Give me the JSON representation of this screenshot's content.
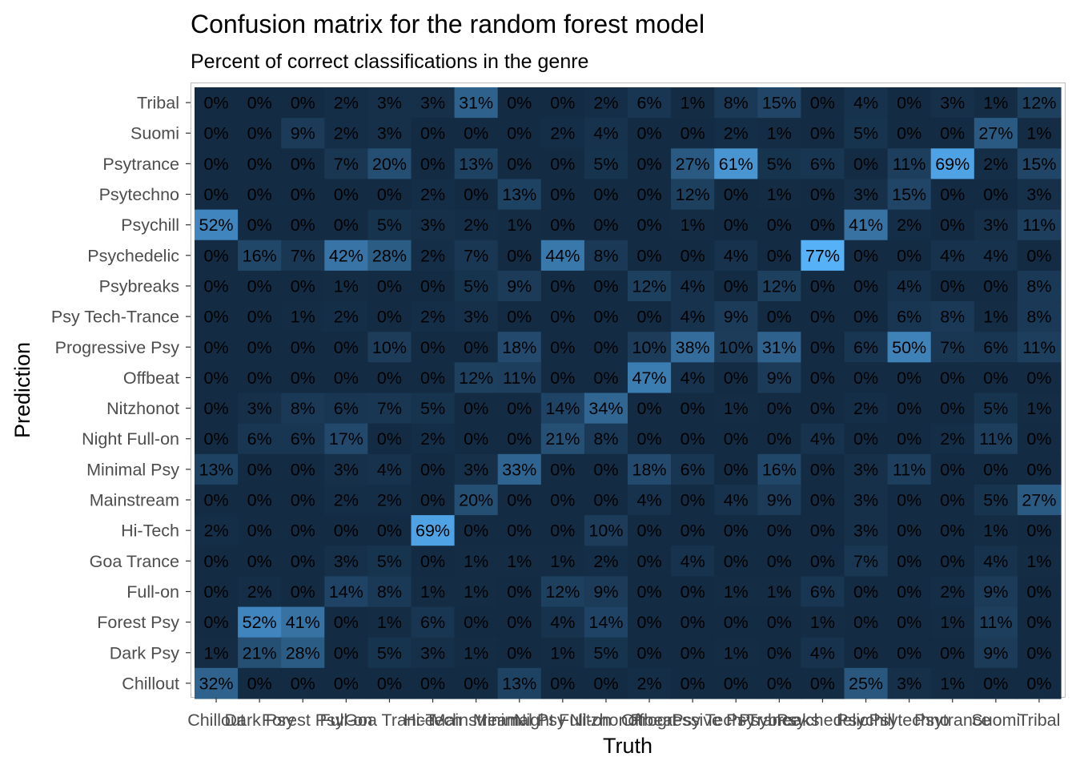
{
  "chart_data": {
    "type": "heatmap",
    "title": "Confusion matrix for the random forest model",
    "subtitle": "Percent of correct classifications in the genre",
    "xlabel": "Truth",
    "ylabel": "Prediction",
    "x_categories": [
      "Chillout",
      "Dark Psy",
      "Forest Psy",
      "Full-on",
      "Goa Trance",
      "Hi-Tech",
      "Mainstream",
      "Minimal Psy",
      "Night Full-on",
      "Nitzhonot",
      "Offbeat",
      "Progressive Psy",
      "Psy Tech-Trance",
      "Psybreaks",
      "Psychedelic",
      "Psychill",
      "Psytechno",
      "Psytrance",
      "Suomi",
      "Tribal"
    ],
    "y_categories": [
      "Tribal",
      "Suomi",
      "Psytrance",
      "Psytechno",
      "Psychill",
      "Psychedelic",
      "Psybreaks",
      "Psy Tech-Trance",
      "Progressive Psy",
      "Offbeat",
      "Nitzhonot",
      "Night Full-on",
      "Minimal Psy",
      "Mainstream",
      "Hi-Tech",
      "Goa Trance",
      "Full-on",
      "Forest Psy",
      "Dark Psy",
      "Chillout"
    ],
    "value_unit": "%",
    "values": [
      [
        0,
        0,
        0,
        2,
        3,
        3,
        31,
        0,
        0,
        2,
        6,
        1,
        8,
        15,
        0,
        4,
        0,
        3,
        1,
        12
      ],
      [
        0,
        0,
        9,
        2,
        3,
        0,
        0,
        0,
        2,
        4,
        0,
        0,
        2,
        1,
        0,
        5,
        0,
        0,
        27,
        1
      ],
      [
        0,
        0,
        0,
        7,
        20,
        0,
        13,
        0,
        0,
        5,
        0,
        27,
        61,
        5,
        6,
        0,
        11,
        69,
        2,
        15
      ],
      [
        0,
        0,
        0,
        0,
        0,
        2,
        0,
        13,
        0,
        0,
        0,
        12,
        0,
        1,
        0,
        3,
        15,
        0,
        0,
        3
      ],
      [
        52,
        0,
        0,
        0,
        5,
        3,
        2,
        1,
        0,
        0,
        0,
        1,
        0,
        0,
        0,
        41,
        2,
        0,
        3,
        11
      ],
      [
        0,
        16,
        7,
        42,
        28,
        2,
        7,
        0,
        44,
        8,
        0,
        0,
        4,
        0,
        77,
        0,
        0,
        4,
        4,
        0
      ],
      [
        0,
        0,
        0,
        1,
        0,
        0,
        5,
        9,
        0,
        0,
        12,
        4,
        0,
        12,
        0,
        0,
        4,
        0,
        0,
        8
      ],
      [
        0,
        0,
        1,
        2,
        0,
        2,
        3,
        0,
        0,
        0,
        0,
        4,
        9,
        0,
        0,
        0,
        6,
        8,
        1,
        8
      ],
      [
        0,
        0,
        0,
        0,
        10,
        0,
        0,
        18,
        0,
        0,
        10,
        38,
        10,
        31,
        0,
        6,
        50,
        7,
        6,
        11
      ],
      [
        0,
        0,
        0,
        0,
        0,
        0,
        12,
        11,
        0,
        0,
        47,
        4,
        0,
        9,
        0,
        0,
        0,
        0,
        0,
        0
      ],
      [
        0,
        3,
        8,
        6,
        7,
        5,
        0,
        0,
        14,
        34,
        0,
        0,
        1,
        0,
        0,
        2,
        0,
        0,
        5,
        1
      ],
      [
        0,
        6,
        6,
        17,
        0,
        2,
        0,
        0,
        21,
        8,
        0,
        0,
        0,
        0,
        4,
        0,
        0,
        2,
        11,
        0
      ],
      [
        13,
        0,
        0,
        3,
        4,
        0,
        3,
        33,
        0,
        0,
        18,
        6,
        0,
        16,
        0,
        3,
        11,
        0,
        0,
        0
      ],
      [
        0,
        0,
        0,
        2,
        2,
        0,
        20,
        0,
        0,
        0,
        4,
        0,
        4,
        9,
        0,
        3,
        0,
        0,
        5,
        27
      ],
      [
        2,
        0,
        0,
        0,
        0,
        69,
        0,
        0,
        0,
        10,
        0,
        0,
        0,
        0,
        0,
        3,
        0,
        0,
        1,
        0
      ],
      [
        0,
        0,
        0,
        3,
        5,
        0,
        1,
        1,
        1,
        2,
        0,
        4,
        0,
        0,
        0,
        7,
        0,
        0,
        4,
        1
      ],
      [
        0,
        2,
        0,
        14,
        8,
        1,
        1,
        0,
        12,
        9,
        0,
        0,
        1,
        1,
        6,
        0,
        0,
        2,
        9,
        0
      ],
      [
        0,
        52,
        41,
        0,
        1,
        6,
        0,
        0,
        4,
        14,
        0,
        0,
        0,
        0,
        1,
        0,
        0,
        1,
        11,
        0
      ],
      [
        1,
        21,
        28,
        0,
        5,
        3,
        1,
        0,
        1,
        5,
        0,
        0,
        1,
        0,
        4,
        0,
        0,
        0,
        9,
        0
      ],
      [
        32,
        0,
        0,
        0,
        0,
        0,
        0,
        13,
        0,
        0,
        2,
        0,
        0,
        0,
        0,
        25,
        3,
        1,
        0,
        0
      ]
    ],
    "color_scale": {
      "low": "#132b43",
      "high": "#56b1f7",
      "range": [
        0,
        77
      ]
    },
    "grid": false
  }
}
